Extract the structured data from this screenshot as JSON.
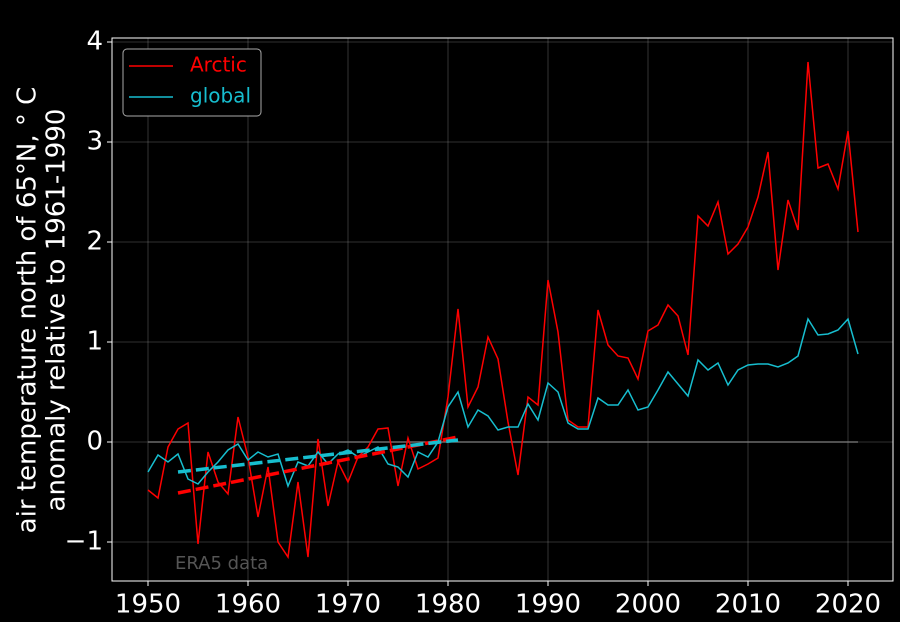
{
  "chart_data": {
    "type": "line",
    "ylabel": [
      "air temperature north of 65°N, ° C",
      "anomaly relative to 1961-1990"
    ],
    "annotation": {
      "text": "ERA5 data",
      "x": 1952.7,
      "y": -1.22
    },
    "x": [
      1950,
      1951,
      1952,
      1953,
      1954,
      1955,
      1956,
      1957,
      1958,
      1959,
      1960,
      1961,
      1962,
      1963,
      1964,
      1965,
      1966,
      1967,
      1968,
      1969,
      1970,
      1971,
      1972,
      1973,
      1974,
      1975,
      1976,
      1977,
      1978,
      1979,
      1980,
      1981,
      1982,
      1983,
      1984,
      1985,
      1986,
      1987,
      1988,
      1989,
      1990,
      1991,
      1992,
      1993,
      1994,
      1995,
      1996,
      1997,
      1998,
      1999,
      2000,
      2001,
      2002,
      2003,
      2004,
      2005,
      2006,
      2007,
      2008,
      2009,
      2010,
      2011,
      2012,
      2013,
      2014,
      2015,
      2016,
      2017,
      2018,
      2019,
      2020,
      2021
    ],
    "series": [
      {
        "name": "Arctic",
        "color": "#ff0000",
        "values": [
          -0.48,
          -0.56,
          -0.05,
          0.13,
          0.19,
          -1.02,
          -0.1,
          -0.4,
          -0.52,
          0.25,
          -0.15,
          -0.75,
          -0.25,
          -1.0,
          -1.15,
          -0.4,
          -1.15,
          0.03,
          -0.64,
          -0.2,
          -0.4,
          -0.15,
          -0.05,
          0.13,
          0.14,
          -0.44,
          0.04,
          -0.27,
          -0.22,
          -0.16,
          0.45,
          1.33,
          0.35,
          0.55,
          1.05,
          0.83,
          0.2,
          -0.33,
          0.45,
          0.37,
          1.62,
          1.1,
          0.22,
          0.15,
          0.15,
          1.32,
          0.97,
          0.86,
          0.84,
          0.63,
          1.11,
          1.17,
          1.37,
          1.26,
          0.87,
          2.26,
          2.16,
          2.4,
          1.88,
          1.98,
          2.15,
          2.45,
          2.9,
          1.72,
          2.42,
          2.12,
          3.8,
          2.74,
          2.78,
          2.53,
          3.11,
          2.1
        ]
      },
      {
        "name": "global",
        "color": "#17becf",
        "values": [
          -0.3,
          -0.13,
          -0.2,
          -0.12,
          -0.37,
          -0.42,
          -0.3,
          -0.2,
          -0.08,
          -0.02,
          -0.18,
          -0.1,
          -0.15,
          -0.12,
          -0.44,
          -0.2,
          -0.24,
          -0.1,
          -0.22,
          -0.12,
          -0.08,
          -0.15,
          -0.1,
          -0.05,
          -0.22,
          -0.25,
          -0.35,
          -0.1,
          -0.15,
          0.0,
          0.35,
          0.5,
          0.15,
          0.32,
          0.26,
          0.12,
          0.15,
          0.15,
          0.38,
          0.22,
          0.59,
          0.5,
          0.19,
          0.13,
          0.13,
          0.44,
          0.37,
          0.37,
          0.52,
          0.32,
          0.35,
          0.52,
          0.7,
          0.58,
          0.46,
          0.82,
          0.72,
          0.79,
          0.57,
          0.72,
          0.77,
          0.78,
          0.78,
          0.75,
          0.79,
          0.86,
          1.23,
          1.07,
          1.08,
          1.12,
          1.23,
          0.88
        ]
      }
    ],
    "trends": [
      {
        "color": "#ff0000",
        "x": [
          1953,
          1981
        ],
        "values": [
          -0.51,
          0.05
        ]
      },
      {
        "color": "#17becf",
        "x": [
          1953,
          1981
        ],
        "values": [
          -0.3,
          0.02
        ]
      }
    ],
    "zero_line": {
      "value": 0,
      "x": [
        1950,
        2021
      ],
      "color": "#808080"
    },
    "xlim": [
      1946.4,
      2024.5
    ],
    "ylim": [
      -1.39,
      4.04
    ],
    "xticks": [
      1950,
      1960,
      1970,
      1980,
      1990,
      2000,
      2010,
      2020
    ],
    "yticks": [
      {
        "value": -1,
        "label": "−1"
      },
      0,
      1,
      2,
      3,
      4
    ],
    "grid": true,
    "legend": "upper left"
  }
}
